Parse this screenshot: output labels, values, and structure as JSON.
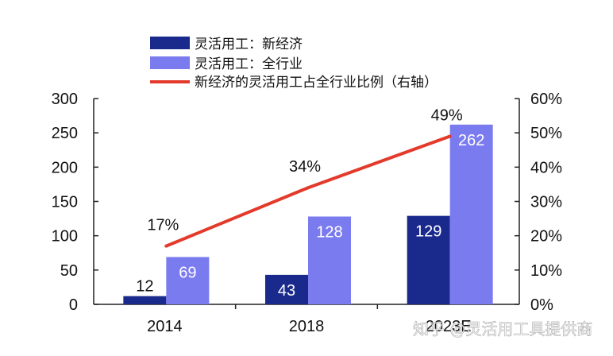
{
  "chart_data": {
    "type": "bar",
    "categories": [
      "2014",
      "2018",
      "2023E"
    ],
    "series": [
      {
        "name": "灵活用工：新经济",
        "values": [
          12,
          43,
          129
        ],
        "color": "#1a2a8c",
        "label_color": "#111111"
      },
      {
        "name": "灵活用工：全行业",
        "values": [
          69,
          128,
          262
        ],
        "color": "#7b7bf0",
        "label_color": "#ffffff"
      }
    ],
    "line_series": {
      "name": "新经济的灵活用工占全行业比例（右轴）",
      "values": [
        17,
        34,
        49
      ],
      "labels": [
        "17%",
        "34%",
        "49%"
      ],
      "color": "#e33a2c"
    },
    "ylim": [
      0,
      300
    ],
    "y_ticks": [
      "0",
      "50",
      "100",
      "150",
      "200",
      "250",
      "300"
    ],
    "y2lim": [
      0,
      60
    ],
    "y2_ticks": [
      "0%",
      "10%",
      "20%",
      "30%",
      "40%",
      "50%",
      "60%"
    ],
    "legend_position": "top-center",
    "grid": false
  },
  "watermark": "知乎 @灵活用工具提供商"
}
